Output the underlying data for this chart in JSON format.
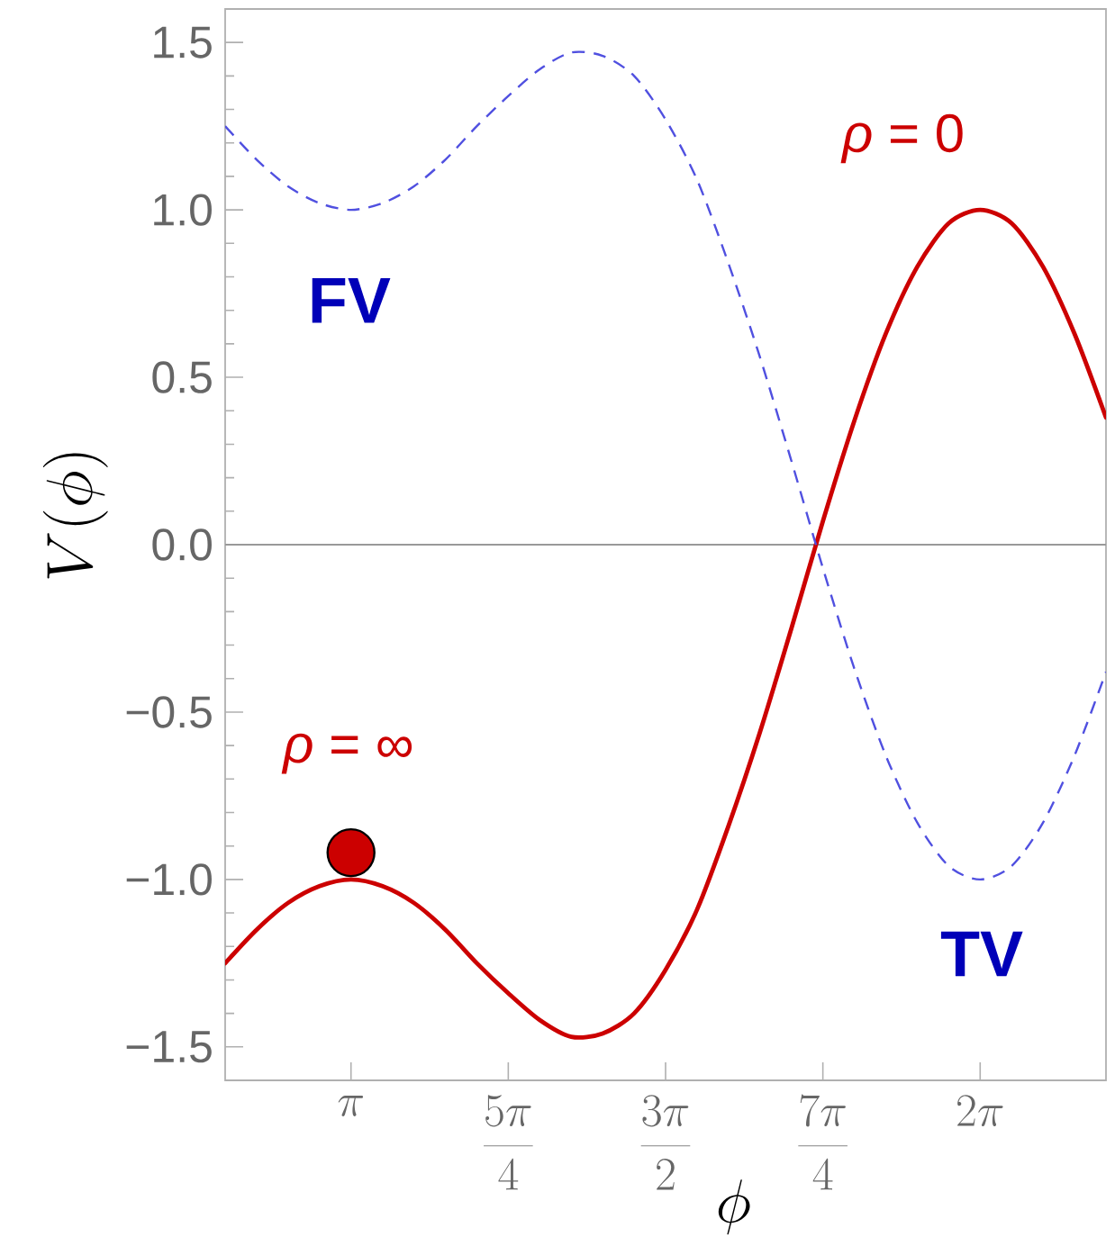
{
  "chart_data": {
    "type": "line",
    "xlabel": "\\phi",
    "ylabel": "V(\\phi)",
    "categories": [
      null,
      null,
      null,
      null,
      "\\pi",
      null,
      null,
      null,
      null,
      "\\frac{5\\pi}{4}",
      null,
      null,
      null,
      null,
      "\\frac{3\\pi}{2}",
      null,
      null,
      null,
      null,
      "\\frac{7\\pi}{4}",
      null,
      null,
      null,
      null,
      "2\\pi",
      null,
      null,
      null,
      null
    ],
    "ylim": [
      -1.6,
      1.6
    ],
    "yticks": [
      {
        "value": -1.5,
        "label": "−1.5"
      },
      {
        "value": -1,
        "label": "−1.0"
      },
      {
        "value": -0.5,
        "label": "−0.5"
      },
      {
        "value": 0,
        "label": "0.0"
      },
      0.5,
      {
        "value": 1,
        "label": "1.0"
      },
      1.5
    ],
    "series": [
      {
        "color": "#cc0000",
        "line_style": "solid",
        "values": [
          -1.25,
          -1.15,
          -1.07,
          -1.02,
          -1.0,
          -1.02,
          -1.07,
          -1.15,
          -1.25,
          -1.34,
          -1.42,
          -1.47,
          -1.46,
          -1.4,
          -1.27,
          -1.09,
          -0.84,
          -0.56,
          -0.25,
          0.07,
          0.37,
          0.63,
          0.83,
          0.96,
          1.0,
          0.96,
          0.83,
          0.63,
          0.38
        ]
      },
      {
        "color": "#5050e0",
        "line_style": "dashed",
        "values": [
          1.25,
          1.15,
          1.07,
          1.02,
          1.0,
          1.02,
          1.07,
          1.15,
          1.25,
          1.34,
          1.42,
          1.47,
          1.46,
          1.4,
          1.27,
          1.09,
          0.84,
          0.56,
          0.25,
          -0.07,
          -0.37,
          -0.63,
          -0.83,
          -0.96,
          -1.0,
          -0.96,
          -0.83,
          -0.63,
          -0.38
        ]
      },
      {
        "type": "scatter",
        "marker": "circle",
        "color": "#cc0000",
        "values": [
          null,
          null,
          null,
          null,
          -0.92,
          null,
          null,
          null,
          null,
          null,
          null,
          null,
          null,
          null,
          null,
          null,
          null,
          null,
          null,
          null,
          null,
          null,
          null,
          null,
          null,
          null,
          null,
          null,
          null
        ]
      }
    ],
    "ref_lines": [
      {
        "axis": "y",
        "value": 0,
        "color": "#999999"
      }
    ],
    "annotations": [
      "*ρ* = 0",
      "*ρ* = ∞",
      "FV",
      "TV"
    ]
  }
}
